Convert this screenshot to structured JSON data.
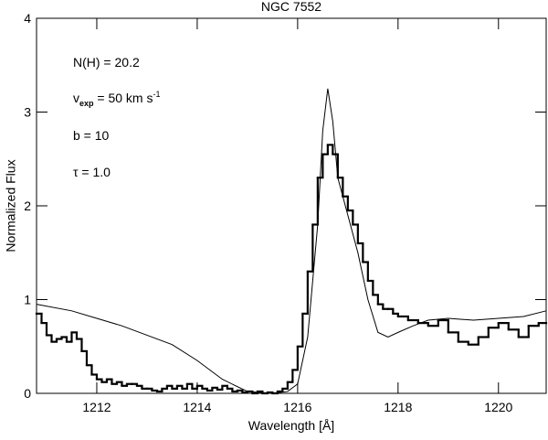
{
  "chart_data": {
    "type": "line",
    "title": "NGC 7552",
    "x_label": "Wavelength [Å]",
    "y_label": "Normalized Flux",
    "annotations": [
      "N(H) = 20.2",
      {
        "main": "v",
        "sub": "exp",
        "rest": " = 50 km s",
        "sup": "-1"
      },
      "b = 10",
      "τ  = 1.0"
    ],
    "xlim": [
      1210.8,
      1220.95
    ],
    "ylim": [
      0,
      4
    ],
    "xticks": [
      1212,
      1214,
      1216,
      1218,
      1220
    ],
    "yticks": [
      0,
      1,
      2,
      3,
      4
    ],
    "series": [
      {
        "style": "step",
        "color": "#000000",
        "x": [
          1210.8,
          1210.9,
          1211.0,
          1211.1,
          1211.2,
          1211.3,
          1211.4,
          1211.5,
          1211.6,
          1211.7,
          1211.8,
          1211.9,
          1212.0,
          1212.1,
          1212.2,
          1212.3,
          1212.4,
          1212.5,
          1212.6,
          1212.7,
          1212.8,
          1212.9,
          1213.0,
          1213.1,
          1213.2,
          1213.3,
          1213.4,
          1213.5,
          1213.6,
          1213.7,
          1213.8,
          1213.9,
          1214.0,
          1214.1,
          1214.2,
          1214.3,
          1214.4,
          1214.5,
          1214.6,
          1214.7,
          1214.8,
          1214.9,
          1215.0,
          1215.1,
          1215.2,
          1215.3,
          1215.4,
          1215.5,
          1215.6,
          1215.7,
          1215.8,
          1215.9,
          1216.0,
          1216.1,
          1216.2,
          1216.3,
          1216.4,
          1216.5,
          1216.6,
          1216.7,
          1216.8,
          1216.9,
          1217.0,
          1217.1,
          1217.2,
          1217.3,
          1217.4,
          1217.5,
          1217.6,
          1217.7,
          1217.8,
          1217.9,
          1218.0,
          1218.2,
          1218.4,
          1218.6,
          1218.8,
          1219.0,
          1219.2,
          1219.4,
          1219.6,
          1219.8,
          1220.0,
          1220.2,
          1220.4,
          1220.6,
          1220.8
        ],
        "values": [
          0.85,
          0.75,
          0.62,
          0.55,
          0.58,
          0.6,
          0.55,
          0.65,
          0.58,
          0.45,
          0.3,
          0.2,
          0.15,
          0.12,
          0.15,
          0.1,
          0.12,
          0.08,
          0.1,
          0.1,
          0.08,
          0.05,
          0.05,
          0.03,
          0.02,
          0.05,
          0.08,
          0.05,
          0.08,
          0.05,
          0.1,
          0.05,
          0.08,
          0.05,
          0.03,
          0.06,
          0.04,
          0.08,
          0.05,
          0.02,
          0.03,
          0.01,
          0.02,
          0,
          0.02,
          0,
          0.01,
          0,
          0.02,
          0.05,
          0.12,
          0.25,
          0.5,
          0.85,
          1.3,
          1.8,
          2.3,
          2.55,
          2.65,
          2.55,
          2.3,
          2.1,
          1.95,
          1.8,
          1.6,
          1.4,
          1.2,
          1.05,
          0.95,
          0.9,
          0.9,
          0.85,
          0.82,
          0.78,
          0.75,
          0.72,
          0.78,
          0.65,
          0.55,
          0.52,
          0.6,
          0.7,
          0.75,
          0.68,
          0.6,
          0.72,
          0.75
        ]
      },
      {
        "style": "line",
        "color": "#000000",
        "x": [
          1210.8,
          1211.5,
          1212,
          1212.5,
          1213,
          1213.5,
          1214,
          1214.5,
          1215,
          1215.5,
          1215.8,
          1216.0,
          1216.2,
          1216.4,
          1216.5,
          1216.6,
          1216.7,
          1216.8,
          1217.0,
          1217.2,
          1217.4,
          1217.6,
          1217.8,
          1218.0,
          1218.3,
          1218.6,
          1219,
          1219.5,
          1220,
          1220.5,
          1220.95
        ],
        "values": [
          0.95,
          0.88,
          0.8,
          0.72,
          0.62,
          0.52,
          0.35,
          0.15,
          0.02,
          0,
          0.02,
          0.1,
          0.6,
          1.8,
          2.8,
          3.25,
          2.9,
          2.3,
          1.9,
          1.5,
          1.0,
          0.65,
          0.6,
          0.65,
          0.72,
          0.78,
          0.8,
          0.78,
          0.8,
          0.82,
          0.88
        ]
      }
    ]
  }
}
